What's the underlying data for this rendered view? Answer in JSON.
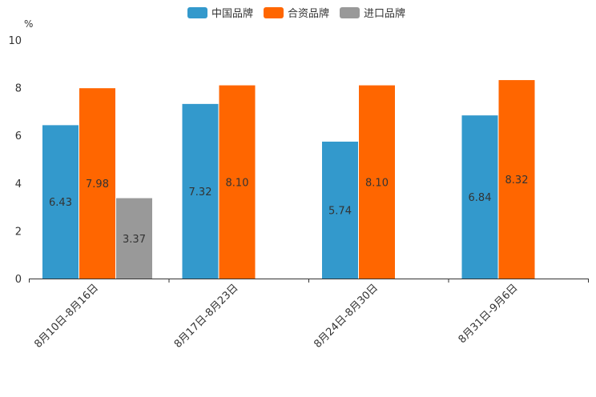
{
  "chart_data": {
    "type": "bar",
    "title": "",
    "unit": "%",
    "xlabel": "",
    "ylabel": "",
    "ylim": [
      0,
      10
    ],
    "yticks": [
      0,
      2,
      4,
      6,
      8,
      10
    ],
    "legend_position": "top-center",
    "grid": false,
    "categories": [
      "8月10日-8月16日",
      "8月17日-8月23日",
      "8月24日-8月30日",
      "8月31日-9月6日"
    ],
    "series": [
      {
        "name": "中国品牌",
        "color": "#3399cc",
        "values": [
          6.43,
          7.32,
          5.74,
          6.84
        ]
      },
      {
        "name": "合资品牌",
        "color": "#ff6600",
        "values": [
          7.98,
          8.1,
          8.1,
          8.32
        ]
      },
      {
        "name": "进口品牌",
        "color": "#999999",
        "values": [
          3.37,
          null,
          null,
          null
        ]
      }
    ]
  }
}
